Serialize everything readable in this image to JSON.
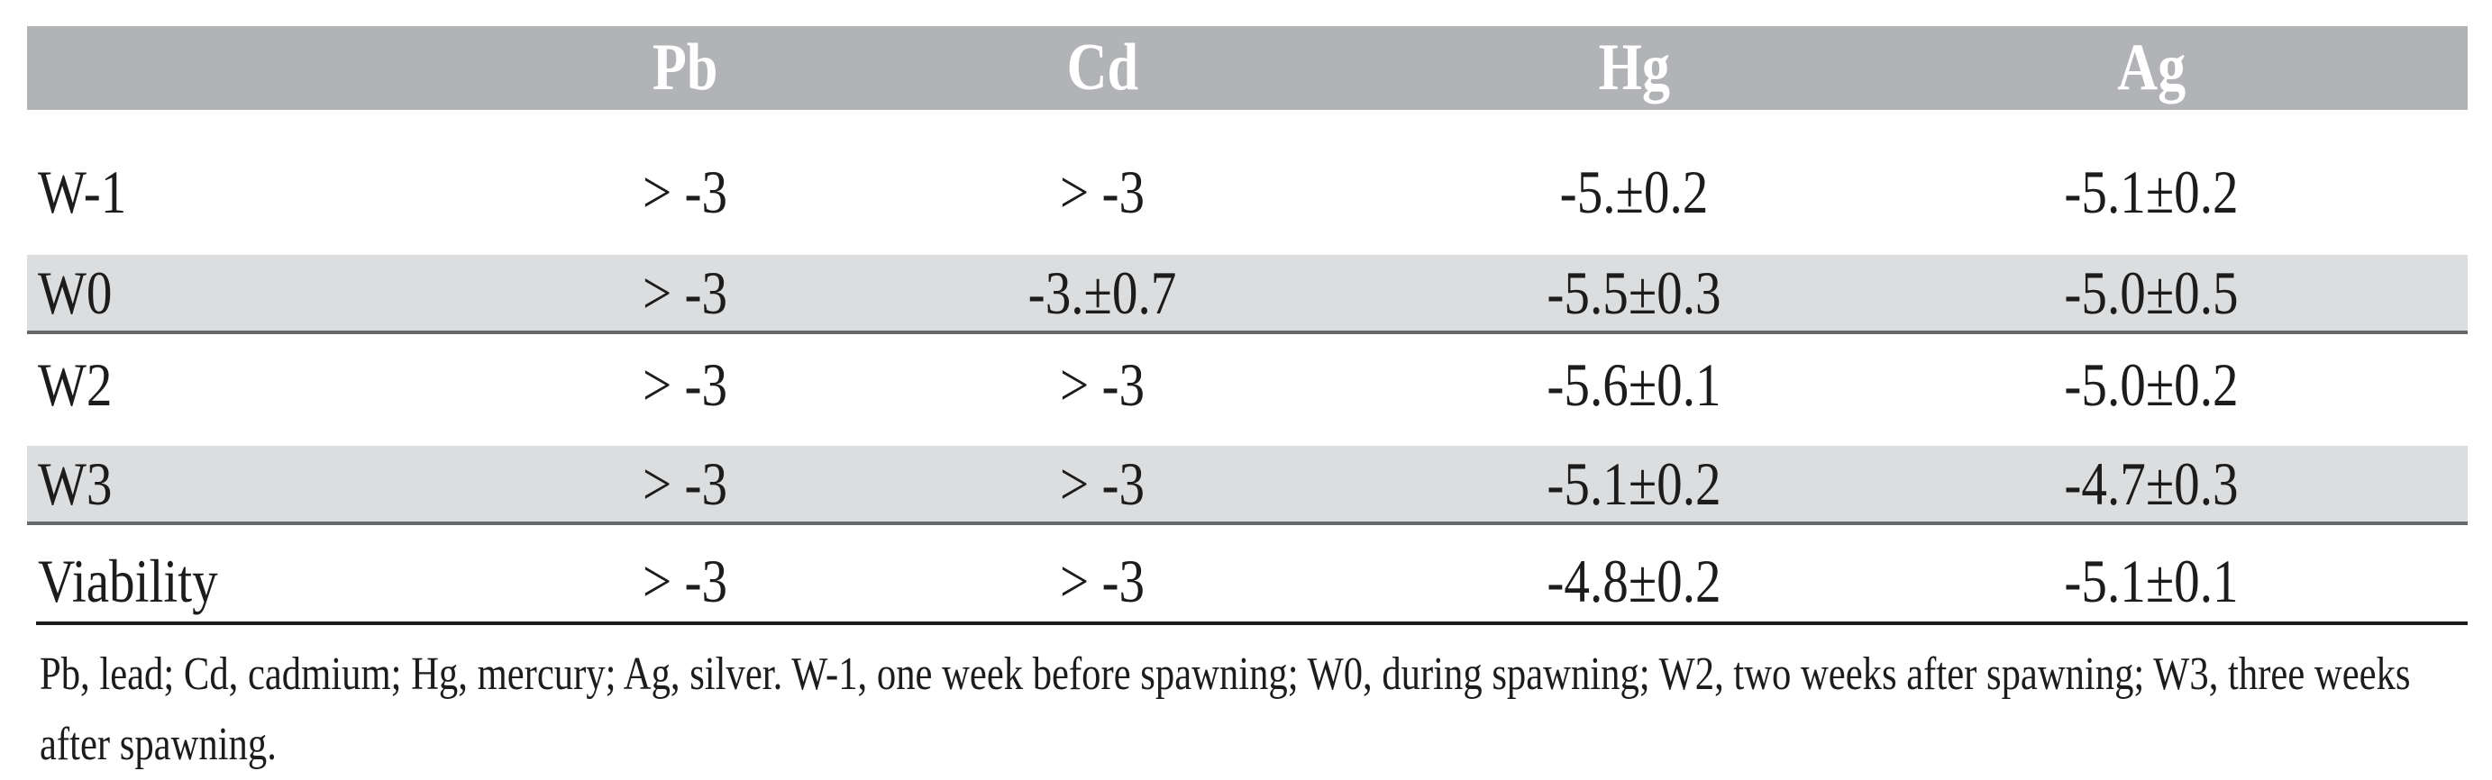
{
  "colors": {
    "header_bg": "#b2b3b6",
    "stripe_bg": "#dcddde",
    "stripe_rule": "#66686b",
    "bottom_rule": "#1c1c1c",
    "header_text": "#ffffff",
    "body_text": "#1c1c1c"
  },
  "table": {
    "columns": [
      "",
      "Pb",
      "Cd",
      "Hg",
      "Ag"
    ],
    "rows": [
      {
        "label": "W-1",
        "values": [
          "> -3",
          "> -3",
          "-5.±0.2",
          "-5.1±0.2"
        ]
      },
      {
        "label": "W0",
        "values": [
          "> -3",
          "-3.±0.7",
          "-5.5±0.3",
          "-5.0±0.5"
        ]
      },
      {
        "label": "W2",
        "values": [
          "> -3",
          "> -3",
          "-5.6±0.1",
          "-5.0±0.2"
        ]
      },
      {
        "label": "W3",
        "values": [
          "> -3",
          "> -3",
          "-5.1±0.2",
          "-4.7±0.3"
        ]
      },
      {
        "label": "Viability",
        "values": [
          "> -3",
          "> -3",
          "-4.8±0.2",
          "-5.1±0.1"
        ]
      }
    ],
    "footnote": "Pb, lead; Cd, cadmium; Hg, mercury; Ag, silver. W-1, one week before spawning; W0, during spawning; W2, two weeks after spawning; W3, three weeks after spawning."
  }
}
